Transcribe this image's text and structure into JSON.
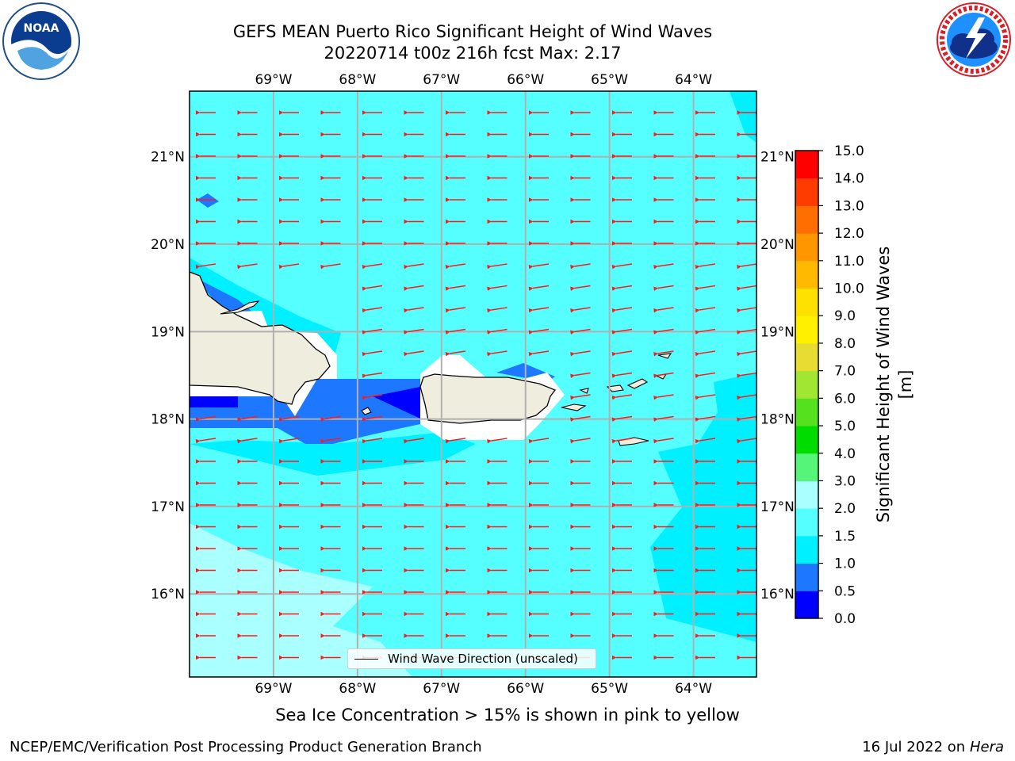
{
  "title": {
    "line1": "GEFS MEAN Puerto Rico Significant Height of Wind Waves",
    "line2": "20220714 t00z 216h fcst   Max: 2.17"
  },
  "logos": {
    "noaa": {
      "text": "NOAA",
      "icon": "noaa-logo"
    },
    "nws": {
      "icon": "nws-logo"
    }
  },
  "map": {
    "lon_range": [
      -70.0,
      -63.25
    ],
    "lat_range": [
      15.05,
      21.75
    ],
    "lon_ticks": [
      "69°W",
      "68°W",
      "67°W",
      "66°W",
      "65°W",
      "64°W"
    ],
    "lat_ticks": [
      "21°N",
      "20°N",
      "19°N",
      "18°N",
      "17°N",
      "16°N"
    ],
    "grid": true,
    "background_color": "#55ffff",
    "land_color": "#efedde",
    "arrow_color": "#ff1a1a",
    "arrow_direction": "toward west"
  },
  "legend": {
    "label": "Wind Wave Direction (unscaled)",
    "placement": "bottom-center"
  },
  "colorbar": {
    "label": "Significant Height of Wind Waves [m]",
    "ticks": [
      "0.0",
      "0.5",
      "1.0",
      "1.5",
      "2.0",
      "3.0",
      "4.0",
      "5.0",
      "6.0",
      "7.0",
      "8.0",
      "9.0",
      "10.0",
      "11.0",
      "12.0",
      "13.0",
      "14.0",
      "15.0"
    ],
    "colors": [
      "#0000ff",
      "#1e78ff",
      "#00f0ff",
      "#55ffff",
      "#aaffff",
      "#55f57a",
      "#00dc00",
      "#55e11e",
      "#a0e632",
      "#e6dc32",
      "#fff000",
      "#ffe100",
      "#ffb900",
      "#ff9600",
      "#ff6e00",
      "#ff3c00",
      "#ff0000"
    ]
  },
  "captions": {
    "ice_note": "Sea Ice Concentration > 15% is shown in pink to yellow",
    "footer_left": "NCEP/EMC/Verification Post Processing Product Generation Branch",
    "footer_right_prefix": "16 Jul 2022 on ",
    "footer_right_machine": "Hera"
  }
}
